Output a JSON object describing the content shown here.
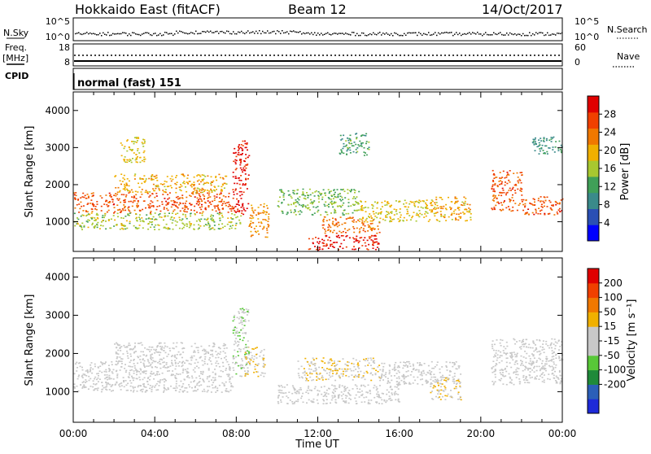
{
  "header": {
    "radar": "Hokkaido East (fitACF)",
    "beam": "Beam 12",
    "date": "14/Oct/2017"
  },
  "left_labels": {
    "nsky": "N.Sky",
    "freq_line1": "Freq.",
    "freq_line2": "[MHz]",
    "cpid": "CPID"
  },
  "right_labels": {
    "nsearch": "N.Search",
    "nave": "Nave"
  },
  "noise_panel": {
    "left_ticks": [
      "10^5",
      "10^0"
    ],
    "right_ticks": [
      "10^5",
      "10^0"
    ]
  },
  "freq_panel": {
    "left_ticks": [
      "18",
      "8"
    ],
    "right_ticks": [
      "60",
      "0"
    ]
  },
  "cpid_text": "normal (fast) 151",
  "colors": {
    "power": [
      "#0000ff",
      "#2a4fb4",
      "#3a8a8a",
      "#40a058",
      "#a8c830",
      "#f0b000",
      "#f07800",
      "#f04000",
      "#e00000"
    ],
    "velocity": [
      "#1e2ad8",
      "#2b5fb8",
      "#1f8a3a",
      "#58c838",
      "#c8c8c8",
      "#c8c8c8",
      "#f0b000",
      "#f07800",
      "#f04000",
      "#e00000"
    ]
  },
  "chart_data": [
    {
      "type": "heatmap",
      "name": "power",
      "xlabel": "",
      "ylabel": "Slant Range [km]",
      "xlim": [
        0,
        24
      ],
      "ylim": [
        200,
        4500
      ],
      "yticks": [
        "1000",
        "2000",
        "3000",
        "4000"
      ],
      "colorbar": {
        "label": "Power [dB]",
        "ticks": [
          "4",
          "8",
          "12",
          "16",
          "20",
          "24",
          "28"
        ],
        "range": [
          0,
          32
        ]
      },
      "features": [
        {
          "t": [
            0.0,
            7.8
          ],
          "range": [
            1250,
            1800
          ],
          "value": 26
        },
        {
          "t": [
            0.0,
            8.2
          ],
          "range": [
            800,
            1250
          ],
          "value": 16
        },
        {
          "t": [
            2.0,
            7.5
          ],
          "range": [
            1800,
            2300
          ],
          "value": 20
        },
        {
          "t": [
            2.3,
            3.5
          ],
          "range": [
            2600,
            3300
          ],
          "value": 18
        },
        {
          "t": [
            7.8,
            8.6
          ],
          "range": [
            1200,
            3200
          ],
          "value": 30
        },
        {
          "t": [
            8.6,
            9.6
          ],
          "range": [
            600,
            1500
          ],
          "value": 22
        },
        {
          "t": [
            10.0,
            14.0
          ],
          "range": [
            1200,
            1900
          ],
          "value": 14
        },
        {
          "t": [
            12.2,
            15.0
          ],
          "range": [
            700,
            1150
          ],
          "value": 24
        },
        {
          "t": [
            14.0,
            17.5
          ],
          "range": [
            1000,
            1600
          ],
          "value": 18
        },
        {
          "t": [
            17.5,
            19.5
          ],
          "range": [
            1000,
            1700
          ],
          "value": 20
        },
        {
          "t": [
            20.5,
            22.0
          ],
          "range": [
            1300,
            2400
          ],
          "value": 26
        },
        {
          "t": [
            22.0,
            24.0
          ],
          "range": [
            1200,
            1700
          ],
          "value": 26
        },
        {
          "t": [
            11.5,
            15.0
          ],
          "range": [
            250,
            650
          ],
          "value": 30
        },
        {
          "t": [
            13.0,
            14.5
          ],
          "range": [
            2800,
            3400
          ],
          "value": 12
        },
        {
          "t": [
            22.5,
            24.0
          ],
          "range": [
            2800,
            3300
          ],
          "value": 10
        }
      ]
    },
    {
      "type": "heatmap",
      "name": "velocity",
      "xlabel": "Time UT",
      "ylabel": "Slant Range [km]",
      "xlim": [
        0,
        24
      ],
      "ylim": [
        200,
        4500
      ],
      "xticks": [
        "00:00",
        "04:00",
        "08:00",
        "12:00",
        "16:00",
        "20:00",
        "00:00"
      ],
      "yticks": [
        "1000",
        "2000",
        "3000",
        "4000"
      ],
      "colorbar": {
        "label": "Velocity [m s⁻¹]",
        "ticks": [
          "200",
          "100",
          "50",
          "15",
          "-15",
          "-50",
          "-100",
          "-200"
        ],
        "range": [
          -250,
          250
        ]
      },
      "features": [
        {
          "t": [
            0.0,
            7.8
          ],
          "range": [
            1000,
            1800
          ],
          "value": 0
        },
        {
          "t": [
            2.0,
            7.5
          ],
          "range": [
            1800,
            2300
          ],
          "value": 0
        },
        {
          "t": [
            7.8,
            8.6
          ],
          "range": [
            1400,
            3200
          ],
          "value": -40
        },
        {
          "t": [
            8.4,
            9.4
          ],
          "range": [
            1400,
            2200
          ],
          "value": 40
        },
        {
          "t": [
            11.0,
            15.0
          ],
          "range": [
            1300,
            1900
          ],
          "value": 40
        },
        {
          "t": [
            15.0,
            19.0
          ],
          "range": [
            1200,
            1800
          ],
          "value": 0
        },
        {
          "t": [
            17.5,
            19.0
          ],
          "range": [
            800,
            1400
          ],
          "value": 40
        },
        {
          "t": [
            20.5,
            24.0
          ],
          "range": [
            1200,
            2400
          ],
          "value": 0
        },
        {
          "t": [
            10.0,
            16.0
          ],
          "range": [
            700,
            1200
          ],
          "value": 0
        }
      ]
    }
  ]
}
